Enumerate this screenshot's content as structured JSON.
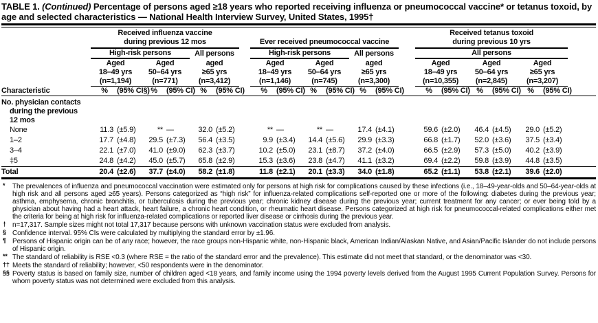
{
  "title": {
    "prefix": "TABLE 1.",
    "continued": "(Continued)",
    "rest": "Percentage of persons aged ≥18 years who reported receiving influenza or pneumococcal vaccine* or tetanus toxoid, by age and selected characteristics — National Health Interview Survey, United States, 1995†"
  },
  "table": {
    "stub_header": "Characteristic",
    "groups": [
      {
        "lines": [
          "Received influenza vaccine",
          "during previous 12 mos"
        ],
        "subgroups": [
          {
            "label": "High-risk persons",
            "span": 2,
            "underline": true
          },
          {
            "label": "All persons",
            "span": 1,
            "underline": false
          }
        ]
      },
      {
        "lines": [
          "Ever received pneumococcal vaccine"
        ],
        "subgroups": [
          {
            "label": "High-risk persons",
            "span": 2,
            "underline": true
          },
          {
            "label": "All persons",
            "span": 1,
            "underline": false
          }
        ]
      },
      {
        "lines": [
          "Received tetanus toxoid",
          "during previous 10 yrs"
        ],
        "subgroups": [
          {
            "label": "All persons",
            "span": 3,
            "underline": true
          }
        ]
      }
    ],
    "columns": [
      {
        "aged": "Aged",
        "range": "18–49 yrs",
        "n": "(n=1,194)",
        "pct": "%",
        "ci": "(95% CI§)"
      },
      {
        "aged": "Aged",
        "range": "50–64 yrs",
        "n": "(n=771)",
        "pct": "%",
        "ci": "(95% CI)"
      },
      {
        "aged": "aged",
        "range": "≥65 yrs",
        "n": "(n=3,412)",
        "pct": "%",
        "ci": "(95% CI)"
      },
      {
        "aged": "Aged",
        "range": "18–49 yrs",
        "n": "(n=1,146)",
        "pct": "%",
        "ci": "(95% CI)"
      },
      {
        "aged": "Aged",
        "range": "50–64 yrs",
        "n": "(n=745)",
        "pct": "%",
        "ci": "(95% CI)"
      },
      {
        "aged": "aged",
        "range": "≥65 yrs",
        "n": "(n=3,300)",
        "pct": "%",
        "ci": "(95% CI)"
      },
      {
        "aged": "Aged",
        "range": "18–49 yrs",
        "n": "(n=10,355)",
        "pct": "%",
        "ci": "(95% CI)"
      },
      {
        "aged": "Aged",
        "range": "50–64 yrs",
        "n": "(n=2,845)",
        "pct": "%",
        "ci": "(95% CI)"
      },
      {
        "aged": "Aged",
        "range": "≥65 yrs",
        "n": "(n=3,207)",
        "pct": "%",
        "ci": "(95% CI)"
      }
    ],
    "section": {
      "lines": [
        "No. physician contacts",
        "during the previous",
        "12 mos"
      ]
    },
    "rows": [
      {
        "label": "None",
        "indent": true,
        "bold": false,
        "total": false,
        "cells": [
          [
            "11.3",
            "(±5.9)"
          ],
          [
            "**",
            "—"
          ],
          [
            "32.0",
            "(±5.2)"
          ],
          [
            "**",
            "—"
          ],
          [
            "**",
            "—"
          ],
          [
            "17.4",
            "(±4.1)"
          ],
          [
            "59.6",
            "(±2.0)"
          ],
          [
            "46.4",
            "(±4.5)"
          ],
          [
            "29.0",
            "(±5.2)"
          ]
        ]
      },
      {
        "label": "1–2",
        "indent": true,
        "bold": false,
        "total": false,
        "cells": [
          [
            "17.7",
            "(±4.8)"
          ],
          [
            "29.5",
            "(±7.3)"
          ],
          [
            "56.4",
            "(±3.5)"
          ],
          [
            "9.9",
            "(±3.4)"
          ],
          [
            "14.4",
            "(±5.6)"
          ],
          [
            "29.9",
            "(±3.3)"
          ],
          [
            "66.8",
            "(±1.7)"
          ],
          [
            "52.0",
            "(±3.6)"
          ],
          [
            "37.5",
            "(±3.4)"
          ]
        ]
      },
      {
        "label": "3–4",
        "indent": true,
        "bold": false,
        "total": false,
        "cells": [
          [
            "22.1",
            "(±7.0)"
          ],
          [
            "41.0",
            "(±9.0)"
          ],
          [
            "62.3",
            "(±3.7)"
          ],
          [
            "10.2",
            "(±5.0)"
          ],
          [
            "23.1",
            "(±8.7)"
          ],
          [
            "37.2",
            "(±4.0)"
          ],
          [
            "66.5",
            "(±2.9)"
          ],
          [
            "57.3",
            "(±5.0)"
          ],
          [
            "40.2",
            "(±3.9)"
          ]
        ]
      },
      {
        "label": "‡5",
        "indent": true,
        "bold": false,
        "total": false,
        "cells": [
          [
            "24.8",
            "(±4.2)"
          ],
          [
            "45.0",
            "(±5.7)"
          ],
          [
            "65.8",
            "(±2.9)"
          ],
          [
            "15.3",
            "(±3.6)"
          ],
          [
            "23.8",
            "(±4.7)"
          ],
          [
            "41.1",
            "(±3.2)"
          ],
          [
            "69.4",
            "(±2.2)"
          ],
          [
            "59.8",
            "(±3.9)"
          ],
          [
            "44.8",
            "(±3.5)"
          ]
        ]
      },
      {
        "label": "Total",
        "indent": false,
        "bold": true,
        "total": true,
        "cells": [
          [
            "20.4",
            "(±2.6)"
          ],
          [
            "37.7",
            "(±4.0)"
          ],
          [
            "58.2",
            "(±1.8)"
          ],
          [
            "11.8",
            "(±2.1)"
          ],
          [
            "20.1",
            "(±3.3)"
          ],
          [
            "34.0",
            "(±1.8)"
          ],
          [
            "65.2",
            "(±1.1)"
          ],
          [
            "53.8",
            "(±2.1)"
          ],
          [
            "39.6",
            "(±2.0)"
          ]
        ]
      }
    ]
  },
  "footnotes": [
    {
      "marker": "*",
      "text": "The prevalences of influenza and pneumococcal vaccination were estimated only for persons at high risk for complications caused by these infections (i.e., 18–49-year-olds and 50–64-year-olds at high risk and all persons aged ≥65 years). Persons categorized as “high risk” for influenza-related complications self-reported one or more of the following: diabetes during the previous year; asthma, emphysema, chronic bronchitis, or tuberculosis during the previous year; chronic kidney disease during the previous year; current treatment for any cancer; or ever being told by a physician about having had a heart attack, heart failure, a chronic heart condition, or rheumatic heart disease. Persons categorized at high risk for pneumococcal-related complications either met the criteria for being at high risk for influenza-related complications or reported liver disease or cirrhosis during the previous year."
    },
    {
      "marker": "†",
      "text": "n=17,317. Sample sizes might not total 17,317 because persons with unknown vaccination status were excluded from analysis."
    },
    {
      "marker": "§",
      "text": "Confidence interval. 95% CIs were calculated by multiplying the standard error by ±1.96."
    },
    {
      "marker": "¶",
      "text": "Persons of Hispanic origin can be of any race; however, the race groups non-Hispanic white, non-Hispanic black, American Indian/Alaskan Native, and Asian/Pacific Islander do not include persons of Hispanic origin."
    },
    {
      "marker": "**",
      "text": "The standard of reliability is RSE <0.3 (where RSE = the ratio of the standard error and the prevalence). This estimate did not meet that standard, or the denominator was <30."
    },
    {
      "marker": "††",
      "text": "Meets the standard of reliability; however, <50 respondents were in the denominator."
    },
    {
      "marker": "§§",
      "text": "Poverty status is based on family size, number of children aged <18 years, and family income using the 1994 poverty levels derived from the August 1995 Current Population Survey. Persons for whom poverty status was not determined were excluded from this analysis."
    }
  ],
  "colors": {
    "text": "#0b0b0b",
    "background": "#ffffff",
    "rule": "#000000"
  }
}
